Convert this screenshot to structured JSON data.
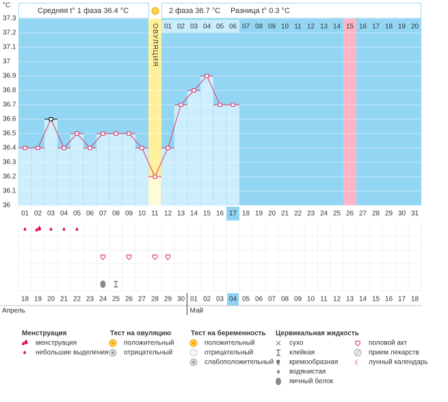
{
  "chart_data": {
    "type": "line",
    "y_unit": "°C",
    "phase1_text": "Средняя t° 1 фаза 36.4 °C",
    "phase2_text": "2 фаза 36.7 °C",
    "diff_text": "Разница t° 0.3 °C",
    "categories": [
      "01",
      "02",
      "03",
      "04",
      "05",
      "06",
      "07",
      "08",
      "09",
      "10",
      "11",
      "12",
      "13",
      "14",
      "15",
      "16",
      "17",
      "18",
      "19",
      "20",
      "21",
      "22",
      "23",
      "24",
      "25",
      "26",
      "27",
      "28",
      "29",
      "30",
      "31"
    ],
    "series": [
      {
        "name": "t°",
        "color": "#d8346a",
        "values": [
          36.4,
          36.4,
          36.6,
          36.4,
          36.5,
          36.4,
          36.5,
          36.5,
          36.5,
          36.4,
          36.2,
          36.4,
          36.7,
          36.8,
          36.9,
          36.7,
          36.7,
          null,
          null,
          null,
          null,
          null,
          null,
          null,
          null,
          null,
          null,
          null,
          null,
          null,
          null
        ]
      }
    ],
    "selected_day": "03",
    "ylim": [
      36,
      37.3
    ],
    "yticks": [
      36,
      36.1,
      36.2,
      36.3,
      36.4,
      36.5,
      36.6,
      36.7,
      36.8,
      36.9,
      37,
      37.1,
      37.2,
      37.3
    ],
    "grid": true,
    "background_color": "#93d6f4",
    "fill_color": "#cdeefc",
    "column_highlights": [
      {
        "day": "11",
        "color": "#fff19b",
        "label": "ОВУЛЯЦИЯ"
      },
      {
        "day": "26",
        "color": "#ffb5c8"
      }
    ],
    "phase2_labels": [
      "01",
      "02",
      "03",
      "04",
      "05",
      "06",
      "07",
      "08",
      "09",
      "10",
      "11",
      "12",
      "13",
      "14",
      "15",
      "16",
      "17",
      "18",
      "19",
      "20"
    ],
    "symbol_rows": [
      [
        "spotting",
        "menses",
        "spotting",
        "spotting",
        "spotting",
        null,
        null,
        null,
        null,
        null,
        null,
        null,
        null,
        null,
        null,
        null,
        null,
        null,
        null,
        null,
        null,
        null,
        null,
        null,
        null,
        null,
        null,
        null,
        null,
        null,
        null
      ],
      [
        null,
        null,
        null,
        null,
        null,
        null,
        null,
        null,
        null,
        null,
        null,
        null,
        null,
        null,
        null,
        null,
        null,
        null,
        null,
        null,
        null,
        null,
        null,
        null,
        null,
        null,
        null,
        null,
        null,
        null,
        null
      ],
      [
        null,
        null,
        null,
        null,
        null,
        null,
        "heart",
        null,
        "heart",
        null,
        "heart",
        "heart",
        null,
        null,
        null,
        null,
        null,
        null,
        null,
        null,
        null,
        null,
        null,
        null,
        null,
        null,
        null,
        null,
        null,
        null,
        null
      ],
      [
        null,
        null,
        null,
        null,
        null,
        null,
        null,
        null,
        null,
        null,
        null,
        null,
        null,
        null,
        null,
        null,
        null,
        null,
        null,
        null,
        null,
        null,
        null,
        null,
        null,
        null,
        null,
        null,
        null,
        null,
        null
      ],
      [
        null,
        null,
        null,
        null,
        null,
        null,
        "egg-white",
        "sticky",
        null,
        null,
        null,
        null,
        null,
        null,
        null,
        null,
        null,
        null,
        null,
        null,
        null,
        null,
        null,
        null,
        null,
        null,
        null,
        null,
        null,
        null,
        null
      ]
    ],
    "dates": [
      {
        "label": "18",
        "color": "#333333"
      },
      {
        "label": "19",
        "color": "#d0103a"
      },
      {
        "label": "20",
        "color": "#d0103a"
      },
      {
        "label": "21",
        "color": "#333333"
      },
      {
        "label": "22",
        "color": "#333333"
      },
      {
        "label": "23",
        "color": "#333333"
      },
      {
        "label": "24",
        "color": "#333333"
      },
      {
        "label": "25",
        "color": "#333333"
      },
      {
        "label": "26",
        "color": "#d0103a"
      },
      {
        "label": "27",
        "color": "#d0103a"
      },
      {
        "label": "28",
        "color": "#333333"
      },
      {
        "label": "29",
        "color": "#333333"
      },
      {
        "label": "30",
        "color": "#333333"
      },
      {
        "label": "01",
        "color": "#333333"
      },
      {
        "label": "02",
        "color": "#333333"
      },
      {
        "label": "03",
        "color": "#d0103a"
      },
      {
        "label": "04",
        "color": "#333333",
        "today": true
      },
      {
        "label": "05",
        "color": "#333333"
      },
      {
        "label": "06",
        "color": "#333333"
      },
      {
        "label": "07",
        "color": "#333333"
      },
      {
        "label": "08",
        "color": "#333333"
      },
      {
        "label": "09",
        "color": "#333333"
      },
      {
        "label": "10",
        "color": "#d0103a"
      },
      {
        "label": "11",
        "color": "#d0103a"
      },
      {
        "label": "12",
        "color": "#333333"
      },
      {
        "label": "13",
        "color": "#333333"
      },
      {
        "label": "14",
        "color": "#333333"
      },
      {
        "label": "15",
        "color": "#333333"
      },
      {
        "label": "16",
        "color": "#333333"
      },
      {
        "label": "17",
        "color": "#d0103a"
      },
      {
        "label": "18",
        "color": "#d0103a"
      }
    ],
    "months": [
      "Апрель",
      "Май"
    ],
    "legend": [
      {
        "title": "Менструация",
        "items": [
          {
            "label": "менструация",
            "icon": "menses"
          },
          {
            "label": "небольшие выделения",
            "icon": "spotting"
          }
        ]
      },
      {
        "title": "Тест на овуляцию",
        "items": [
          {
            "label": "положительный",
            "icon": "sun"
          },
          {
            "label": "отрицательный",
            "icon": "gray-dot"
          }
        ]
      },
      {
        "title": "Тест на беременность",
        "items": [
          {
            "label": "положительный",
            "icon": "sun"
          },
          {
            "label": "отрицательный",
            "icon": "white-dot"
          },
          {
            "label": "слабоположительный",
            "icon": "gray-dot"
          }
        ]
      },
      {
        "title": "Цервикальная жидкость",
        "items": [
          {
            "label": "сухо",
            "icon": "dry"
          },
          {
            "label": "клейкая",
            "icon": "sticky"
          },
          {
            "label": "кремообразная",
            "icon": "creamy"
          },
          {
            "label": "водянистая",
            "icon": "watery"
          },
          {
            "label": "яичный белок",
            "icon": "egg-white"
          }
        ]
      },
      {
        "items": [
          {
            "label": "половой акт",
            "icon": "heart"
          },
          {
            "label": "прием лекарств",
            "icon": "pill"
          },
          {
            "label": "лунный календарь",
            "icon": "moon"
          }
        ]
      }
    ]
  }
}
